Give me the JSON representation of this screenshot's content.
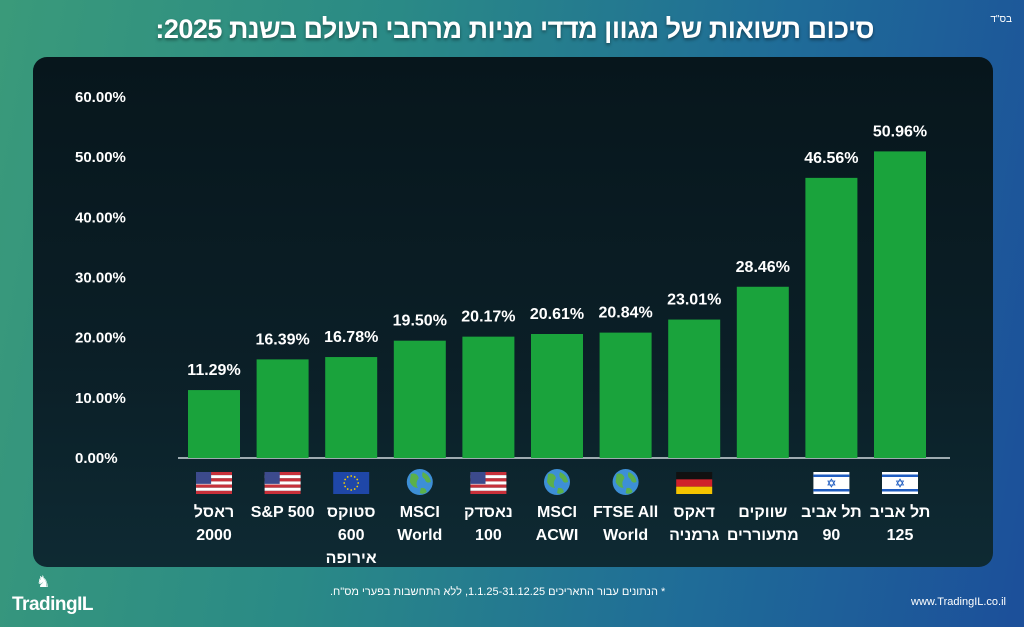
{
  "header": {
    "title": "סיכום תשואות של מגוון מדדי מניות מרחבי העולם בשנת 2025:",
    "corner_mark": "בס\"ד"
  },
  "footer": {
    "note": "* הנתונים עבור התאריכים 1.1.25-31.12.25, ללא התחשבות בפערי מס\"ח.",
    "url": "www.TradingIL.co.il",
    "logo": "TradingIL"
  },
  "colors": {
    "bar": "#1aa33c",
    "panel": "#0b1f27"
  },
  "chart_data": {
    "type": "bar",
    "title": "סיכום תשואות של מגוון מדדי מניות מרחבי העולם בשנת 2025:",
    "ylim": [
      0,
      60
    ],
    "yticks": [
      "0.00%",
      "10.00%",
      "20.00%",
      "30.00%",
      "40.00%",
      "50.00%",
      "60.00%"
    ],
    "grid": false,
    "categories": [
      {
        "lines": [
          "ראסל",
          "2000"
        ],
        "icon": "us-flag-icon"
      },
      {
        "lines": [
          "S&P 500"
        ],
        "icon": "us-flag-icon"
      },
      {
        "lines": [
          "סטוקס",
          "600",
          "אירופה"
        ],
        "icon": "eu-flag-icon"
      },
      {
        "lines": [
          "MSCI",
          "World"
        ],
        "icon": "globe-icon"
      },
      {
        "lines": [
          "נאסדק",
          "100"
        ],
        "icon": "us-flag-icon"
      },
      {
        "lines": [
          "MSCI",
          "ACWI"
        ],
        "icon": "globe-icon"
      },
      {
        "lines": [
          "FTSE All",
          "World"
        ],
        "icon": "globe-icon"
      },
      {
        "lines": [
          "דאקס",
          "גרמניה"
        ],
        "icon": "germany-flag-icon"
      },
      {
        "lines": [
          "שווקים",
          "מתעוררים"
        ],
        "icon": ""
      },
      {
        "lines": [
          "תל אביב",
          "90"
        ],
        "icon": "israel-flag-icon"
      },
      {
        "lines": [
          "תל אביב",
          "125"
        ],
        "icon": "israel-flag-icon"
      }
    ],
    "values": [
      11.29,
      16.39,
      16.78,
      19.5,
      20.17,
      20.61,
      20.84,
      23.01,
      28.46,
      46.56,
      50.96
    ],
    "labels": [
      "11.29%",
      "16.39%",
      "16.78%",
      "19.50%",
      "20.17%",
      "20.61%",
      "20.84%",
      "23.01%",
      "28.46%",
      "46.56%",
      "50.96%"
    ]
  }
}
